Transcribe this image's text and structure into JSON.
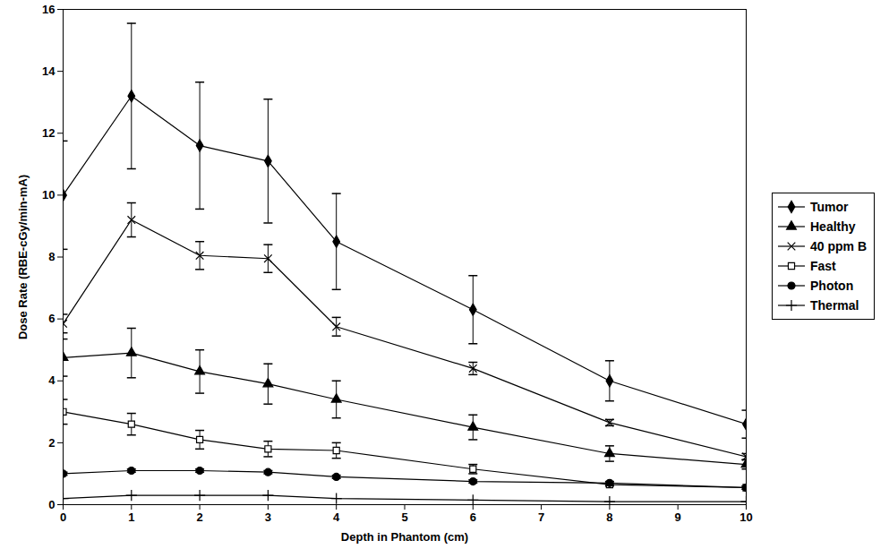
{
  "chart_data": {
    "type": "line",
    "xlabel": "Depth in Phantom (cm)",
    "ylabel": "Dose Rate (RBE-cGy/min-mA)",
    "x": [
      0,
      1,
      2,
      3,
      4,
      6,
      8,
      10
    ],
    "xlim": [
      0,
      10
    ],
    "xticks": [
      0,
      1,
      2,
      3,
      4,
      5,
      6,
      7,
      8,
      9,
      10
    ],
    "ylim": [
      0,
      16
    ],
    "yticks": [
      0,
      2,
      4,
      6,
      8,
      10,
      12,
      14,
      16
    ],
    "grid": false,
    "legend": "right",
    "series": [
      {
        "name": "Tumor",
        "color": "#000000",
        "marker": "diamond",
        "values": [
          10.0,
          13.2,
          11.6,
          11.1,
          8.5,
          6.3,
          4.0,
          2.6
        ],
        "errors": [
          1.75,
          2.35,
          2.05,
          2.0,
          1.55,
          1.1,
          0.65,
          0.45
        ]
      },
      {
        "name": "Healthy",
        "color": "#000000",
        "marker": "triangle",
        "values": [
          4.75,
          4.9,
          4.3,
          3.9,
          3.4,
          2.5,
          1.65,
          1.3
        ],
        "errors": [
          0.6,
          0.8,
          0.7,
          0.65,
          0.6,
          0.4,
          0.25,
          0.15
        ]
      },
      {
        "name": "40 ppm B",
        "color": "#000000",
        "marker": "times",
        "values": [
          5.85,
          9.2,
          8.05,
          7.95,
          5.75,
          4.4,
          2.65,
          1.55
        ],
        "errors": [
          0.3,
          0.55,
          0.45,
          0.45,
          0.3,
          0.2,
          0.1,
          0.1
        ]
      },
      {
        "name": "Fast",
        "color": "#000000",
        "marker": "square-open",
        "values": [
          3.0,
          2.6,
          2.1,
          1.8,
          1.75,
          1.15,
          0.65,
          0.55
        ],
        "errors": [
          0.4,
          0.35,
          0.3,
          0.25,
          0.25,
          0.15,
          0.05,
          0.05
        ]
      },
      {
        "name": "Photon",
        "color": "#000000",
        "marker": "circle",
        "values": [
          1.0,
          1.1,
          1.1,
          1.05,
          0.9,
          0.75,
          0.7,
          0.55
        ],
        "errors": [
          0.05,
          0.05,
          0.05,
          0.05,
          0.05,
          0.05,
          0.05,
          0.05
        ]
      },
      {
        "name": "Thermal",
        "color": "#000000",
        "marker": "plus",
        "values": [
          0.2,
          0.3,
          0.3,
          0.3,
          0.2,
          0.15,
          0.1,
          0.1
        ]
      }
    ]
  }
}
